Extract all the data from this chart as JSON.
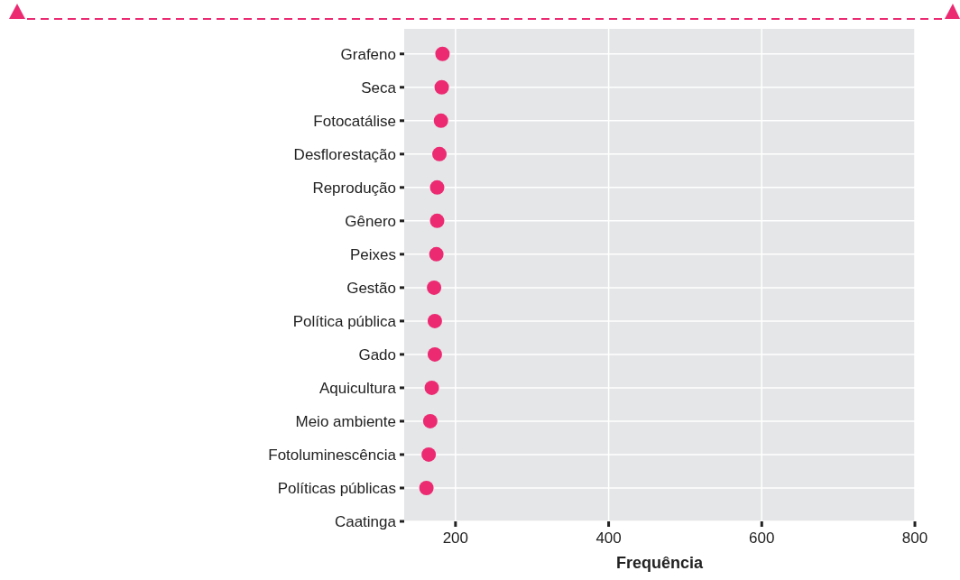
{
  "chart_data": {
    "type": "scatter",
    "xlabel": "Frequência",
    "categories": [
      "Grafeno",
      "Seca",
      "Fotocatálise",
      "Desflorestação",
      "Reprodução",
      "Gênero",
      "Peixes",
      "Gestão",
      "Política pública",
      "Gado",
      "Aquicultura",
      "Meio ambiente",
      "Fotoluminescência",
      "Políticas públicas",
      "Caatinga"
    ],
    "orientation": "horizontal",
    "series": [
      {
        "color": "#ec2a72",
        "values": [
          183,
          182,
          181,
          179,
          176,
          176,
          175,
          172,
          173,
          173,
          169,
          167,
          165,
          162,
          null
        ]
      }
    ],
    "xlim": [
      133,
      800
    ],
    "xticks": [
      200,
      400,
      600,
      800
    ],
    "grid": true,
    "marker": "circle"
  }
}
